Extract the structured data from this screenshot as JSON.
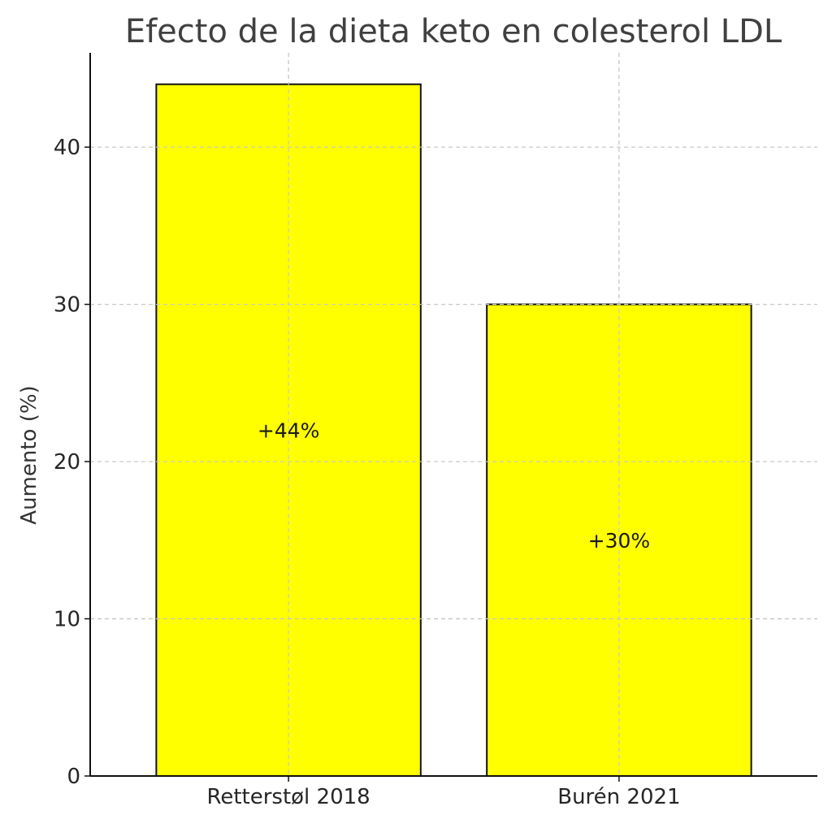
{
  "chart_data": {
    "type": "bar",
    "title": "Efecto de la dieta keto en colesterol LDL",
    "xlabel": "",
    "ylabel": "Aumento (%)",
    "categories": [
      "Retterstøl 2018",
      "Burén 2021"
    ],
    "values": [
      44,
      30
    ],
    "data_labels": [
      "+44%",
      "+30%"
    ],
    "ylim": [
      0,
      46
    ],
    "yticks": [
      0,
      10,
      20,
      30,
      40
    ],
    "ytick_labels": [
      "0",
      "10",
      "20",
      "30",
      "40"
    ],
    "grid": true,
    "bar_color": "#ffff00",
    "edge_color": "#111111"
  }
}
